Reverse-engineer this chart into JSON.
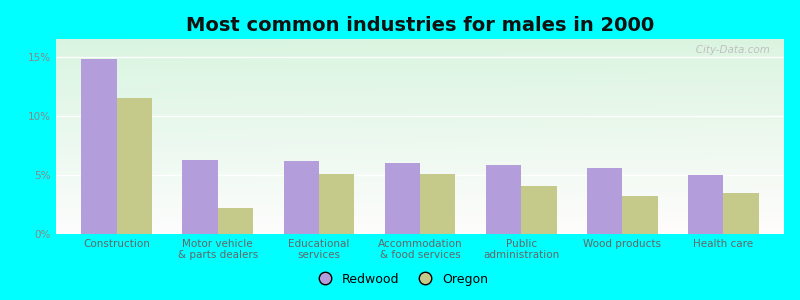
{
  "title": "Most common industries for males in 2000",
  "categories": [
    "Construction",
    "Motor vehicle\n& parts dealers",
    "Educational\nservices",
    "Accommodation\n& food services",
    "Public\nadministration",
    "Wood products",
    "Health care"
  ],
  "redwood": [
    14.8,
    6.3,
    6.2,
    6.0,
    5.8,
    5.6,
    5.0
  ],
  "oregon": [
    11.5,
    2.2,
    5.1,
    5.1,
    4.1,
    3.2,
    3.5
  ],
  "redwood_color": "#b39ddb",
  "oregon_color": "#c5c98a",
  "background_outer": "#00ffff",
  "background_inner": "#e8f5e9",
  "ylim": [
    0,
    16.5
  ],
  "yticks": [
    0,
    5,
    10,
    15
  ],
  "ytick_labels": [
    "0%",
    "5%",
    "10%",
    "15%"
  ],
  "legend_labels": [
    "Redwood",
    "Oregon"
  ],
  "bar_width": 0.35,
  "title_fontsize": 14,
  "tick_fontsize": 7.5,
  "legend_fontsize": 9
}
